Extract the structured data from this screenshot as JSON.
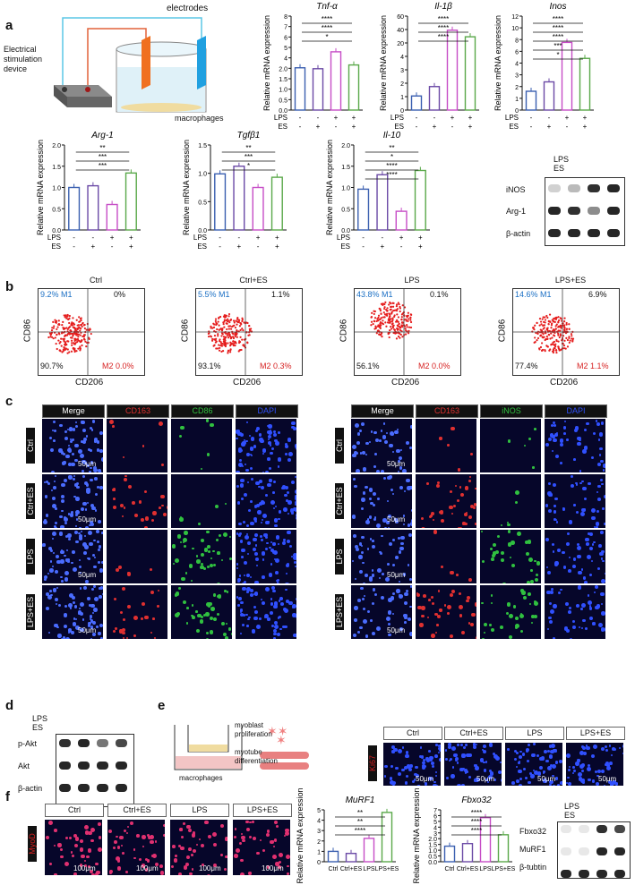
{
  "panels": {
    "a": "a",
    "b": "b",
    "c": "c",
    "d": "d",
    "e": "e",
    "f": "f"
  },
  "a": {
    "electrodes": "electrodes",
    "device": "Electrical\nstimulation\ndevice",
    "macrophages": "macrophages",
    "plus": "+",
    "minus": "-",
    "ylabel": "Relative mRNA expression",
    "lps": "LPS",
    "es": "ES",
    "lps_signs": [
      "-",
      "-",
      "+",
      "+"
    ],
    "es_signs": [
      "-",
      "+",
      "-",
      "+"
    ],
    "charts_top": [
      {
        "title": "Tnf-α",
        "yticks": [
          "0.0",
          "0.5",
          "1.0",
          "1.5",
          "2.0",
          "4",
          "5",
          "6",
          "7",
          "8"
        ],
        "stars": [
          "****",
          "****",
          "*"
        ]
      },
      {
        "title": "Il-1β",
        "yticks": [
          "0",
          "1",
          "2",
          "3",
          "4",
          "20",
          "40",
          "60"
        ],
        "stars": [
          "****",
          "****",
          "****"
        ]
      },
      {
        "title": "Inos",
        "yticks": [
          "0",
          "1",
          "2",
          "3",
          "4",
          "6",
          "8",
          "10",
          "12"
        ],
        "stars": [
          "****",
          "****",
          "****",
          "***",
          "*"
        ]
      }
    ],
    "charts_bottom": [
      {
        "title": "Arg-1",
        "yticks": [
          "0.0",
          "0.5",
          "1.0",
          "1.5",
          "2.0"
        ],
        "stars": [
          "**",
          "***",
          "***"
        ]
      },
      {
        "title": "Tgfβ1",
        "yticks": [
          "0.0",
          "0.5",
          "1.0",
          "1.5"
        ],
        "stars": [
          "**",
          "***",
          "*"
        ]
      },
      {
        "title": "Il-10",
        "yticks": [
          "0.0",
          "0.5",
          "1.0",
          "1.5",
          "2.0"
        ],
        "stars": [
          "**",
          "*",
          "****",
          "****"
        ]
      }
    ],
    "blot_rows": [
      "iNOS",
      "Arg-1",
      "β-actin"
    ]
  },
  "b": {
    "plots": [
      {
        "title": "Ctrl",
        "q1": "9.2% M1",
        "q2": "0%",
        "q3": "90.7%",
        "q4": "M2 0.0%"
      },
      {
        "title": "Ctrl+ES",
        "q1": "5.5% M1",
        "q2": "1.1%",
        "q3": "93.1%",
        "q4": "M2 0.3%"
      },
      {
        "title": "LPS",
        "q1": "43.8% M1",
        "q2": "0.1%",
        "q3": "56.1%",
        "q4": "M2 0.0%"
      },
      {
        "title": "LPS+ES",
        "q1": "14.6% M1",
        "q2": "6.9%",
        "q3": "77.4%",
        "q4": "M2 1.1%"
      }
    ],
    "xlabel": "CD206",
    "ylabel": "CD86"
  },
  "c": {
    "left_headers": [
      "Merge",
      "CD163",
      "CD86",
      "DAPI"
    ],
    "right_headers": [
      "Merge",
      "CD163",
      "iNOS",
      "DAPI"
    ],
    "rows": [
      "Ctrl",
      "Ctrl+ES",
      "LPS",
      "LPS+ES"
    ],
    "scale": "50μm"
  },
  "d": {
    "rows": [
      "p-Akt",
      "Akt",
      "β-actin"
    ]
  },
  "e": {
    "myoblast": "myoblast\nproliferation",
    "myotube": "myotube\ndifferentiation",
    "macrophages": "macrophages",
    "headers": [
      "Ctrl",
      "Ctrl+ES",
      "LPS",
      "LPS+ES"
    ],
    "stain": "Ki67",
    "scale": "50μm"
  },
  "f": {
    "headers": [
      "Ctrl",
      "Ctrl+ES",
      "LPS",
      "LPS+ES"
    ],
    "stain": "MyoD",
    "scale": "100μm",
    "charts": [
      {
        "title": "MuRF1",
        "yticks": [
          "0",
          "1",
          "2",
          "3",
          "4",
          "5"
        ],
        "xcats": [
          "Ctrl",
          "Ctrl+ES",
          "LPS",
          "LPS+ES"
        ],
        "stars": [
          "**",
          "**",
          "****"
        ]
      },
      {
        "title": "Fbxo32",
        "yticks": [
          "0.0",
          "0.5",
          "1.0",
          "1.5",
          "2.0",
          "3",
          "4",
          "5",
          "6",
          "7"
        ],
        "xcats": [
          "Ctrl",
          "Ctrl+ES",
          "LPS",
          "LPS+ES"
        ],
        "stars": [
          "****",
          "****",
          "****"
        ]
      }
    ],
    "blot_rows": [
      "Fbxo32",
      "MuRF1",
      "β-tubtin"
    ]
  },
  "colors": {
    "ctrl": "#3a5fb0",
    "ctrl_es": "#6b4aa6",
    "lps": "#c64dc6",
    "lps_es": "#5aa84a",
    "red": "#d62020",
    "blue": "#1a6fc4"
  }
}
